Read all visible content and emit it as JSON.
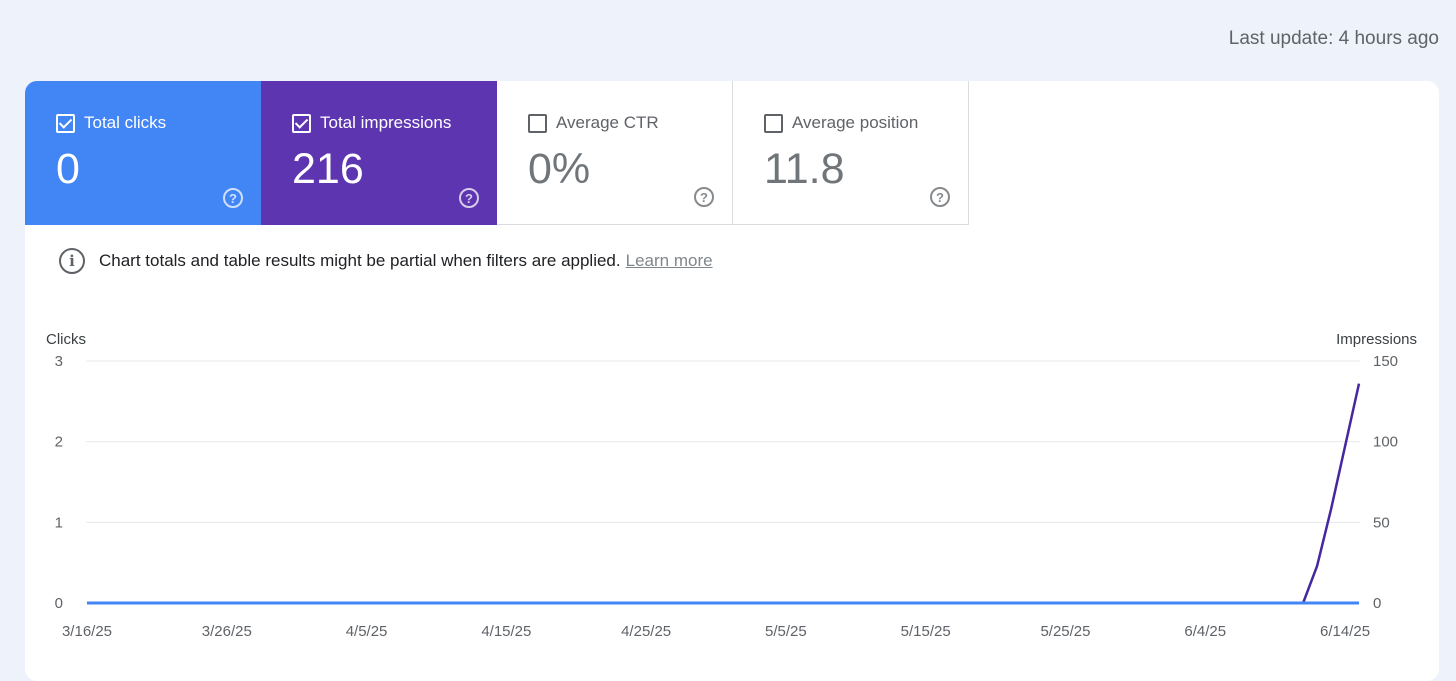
{
  "header": {
    "last_update": "Last update: 4 hours ago"
  },
  "metrics": [
    {
      "label": "Total clicks",
      "value": "0",
      "checked": true
    },
    {
      "label": "Total impressions",
      "value": "216",
      "checked": true
    },
    {
      "label": "Average CTR",
      "value": "0%",
      "checked": false
    },
    {
      "label": "Average position",
      "value": "11.8",
      "checked": false
    }
  ],
  "colors": {
    "clicks": "#4285f4",
    "impressions": "#5e35b1",
    "impressions_line": "#4527a0",
    "grid": "#e8eaed"
  },
  "notice": {
    "text": "Chart totals and table results might be partial when filters are applied.",
    "link": "Learn more"
  },
  "chart_data": {
    "type": "line",
    "left_axis": {
      "label": "Clicks",
      "ticks": [
        0,
        1,
        2,
        3
      ],
      "range": [
        0,
        3
      ]
    },
    "right_axis": {
      "label": "Impressions",
      "ticks": [
        0,
        50,
        100,
        150
      ],
      "range": [
        0,
        150
      ]
    },
    "x_tick_labels": [
      "3/16/25",
      "3/26/25",
      "4/5/25",
      "4/15/25",
      "4/25/25",
      "5/5/25",
      "5/15/25",
      "5/25/25",
      "6/4/25",
      "6/14/25"
    ],
    "x_range": [
      "3/16/25",
      "6/15/25"
    ],
    "series": [
      {
        "name": "Clicks",
        "axis": "left",
        "points": [
          [
            "3/16/25",
            0
          ],
          [
            "6/15/25",
            0
          ]
        ]
      },
      {
        "name": "Impressions",
        "axis": "right",
        "points": [
          [
            "3/16/25",
            0
          ],
          [
            "6/11/25",
            0
          ],
          [
            "6/12/25",
            23
          ],
          [
            "6/13/25",
            58
          ],
          [
            "6/15/25",
            136
          ]
        ]
      }
    ],
    "grid": true
  }
}
